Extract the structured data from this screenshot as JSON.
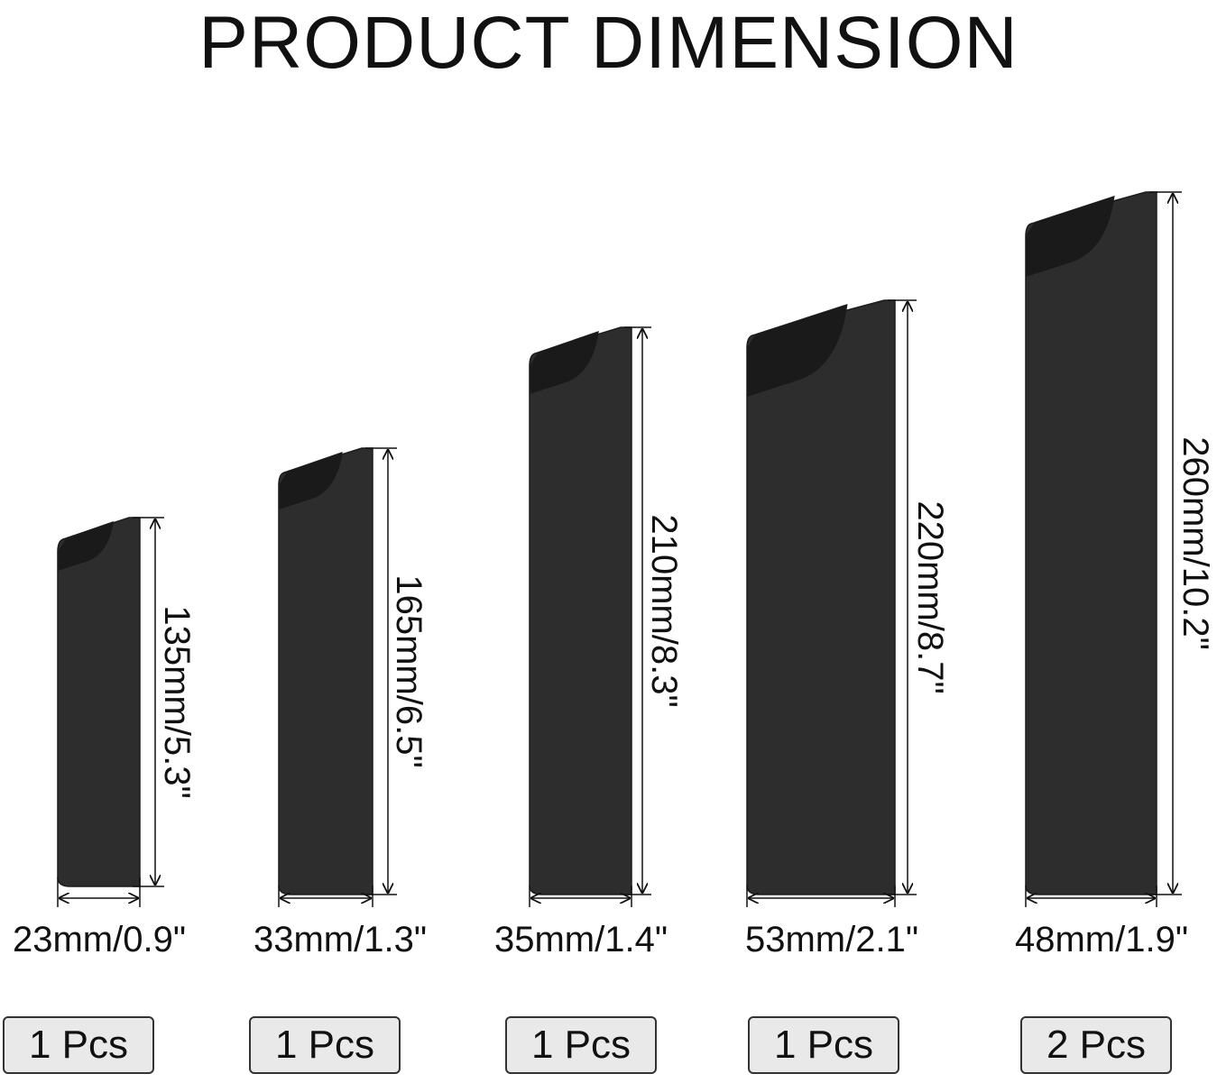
{
  "title": "PRODUCT DIMENSION",
  "colors": {
    "sheath": "#2d2d2d",
    "sheath_edge": "#1c1c1c",
    "line": "#111111",
    "badge_bg": "#e9e9e9",
    "badge_border": "#333333"
  },
  "items": [
    {
      "height_label": "135mm/5.3\"",
      "width_label": "23mm/0.9\"",
      "qty_label": "1 Pcs"
    },
    {
      "height_label": "165mm/6.5\"",
      "width_label": "33mm/1.3\"",
      "qty_label": "1 Pcs"
    },
    {
      "height_label": "210mm/8.3\"",
      "width_label": "35mm/1.4\"",
      "qty_label": "1 Pcs"
    },
    {
      "height_label": "220mm/8.7\"",
      "width_label": "53mm/2.1\"",
      "qty_label": "1 Pcs"
    },
    {
      "height_label": "260mm/10.2\"",
      "width_label": "48mm/1.9\"",
      "qty_label": "2 Pcs"
    }
  ]
}
